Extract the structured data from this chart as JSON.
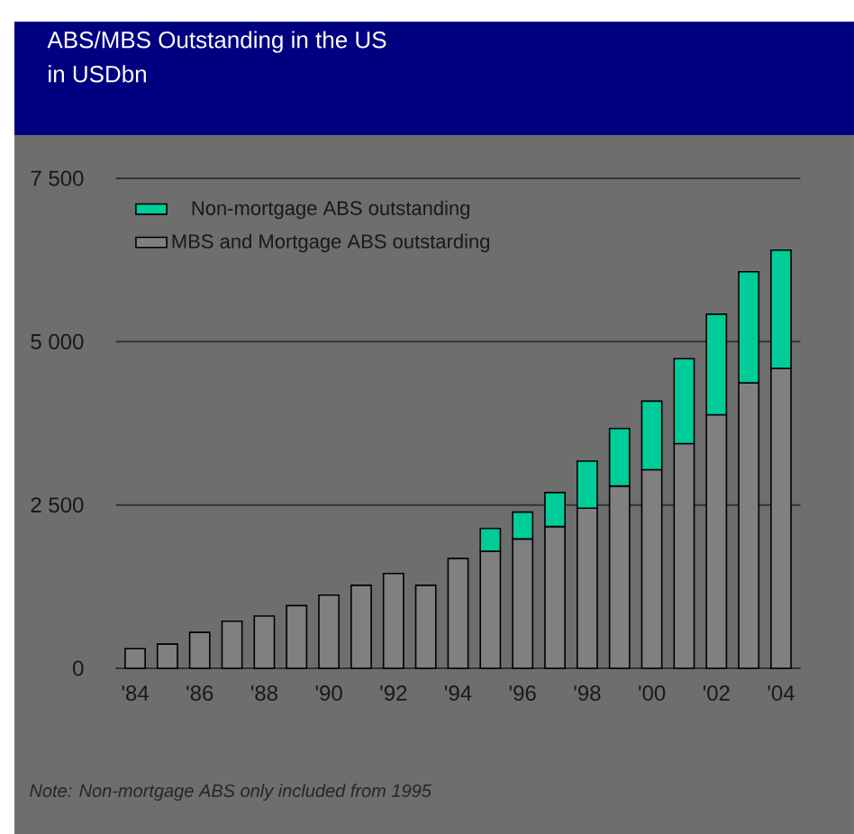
{
  "chart_data": {
    "type": "bar",
    "title": "ABS/MBS Outstanding in the US",
    "subtitle": "in USDbn",
    "categories": [
      "'84",
      null,
      "'86",
      null,
      "'88",
      null,
      "'90",
      null,
      "'92",
      null,
      "'94",
      null,
      "'96",
      null,
      "'98",
      null,
      "'00",
      null,
      "'02",
      null,
      "'04"
    ],
    "stacked": true,
    "series": [
      {
        "name": "MBS and Mortgage ABS outstarding",
        "color": "#808080",
        "values": [
          300,
          370,
          550,
          720,
          800,
          960,
          1120,
          1270,
          1450,
          1270,
          1680,
          1790,
          1980,
          2170,
          2450,
          2790,
          3040,
          3440,
          3880,
          4370,
          4590
        ]
      },
      {
        "name": "Non-mortgage ABS outstanding",
        "color": "#00cc99",
        "values": [
          null,
          null,
          null,
          null,
          null,
          null,
          null,
          null,
          null,
          null,
          null,
          350,
          410,
          520,
          720,
          880,
          1050,
          1300,
          1540,
          1700,
          1810
        ]
      }
    ],
    "ylim": [
      0,
      7500
    ],
    "yticks": [
      {
        "value": 0,
        "label": "0"
      },
      {
        "value": 2500,
        "label": "2 500"
      },
      {
        "value": 5000,
        "label": "5 000"
      },
      {
        "value": 7500,
        "label": "7 500"
      }
    ],
    "grid": "y",
    "legend": "top left",
    "annotations": [
      "Note: Non-mortgage ABS only included from 1995"
    ]
  }
}
